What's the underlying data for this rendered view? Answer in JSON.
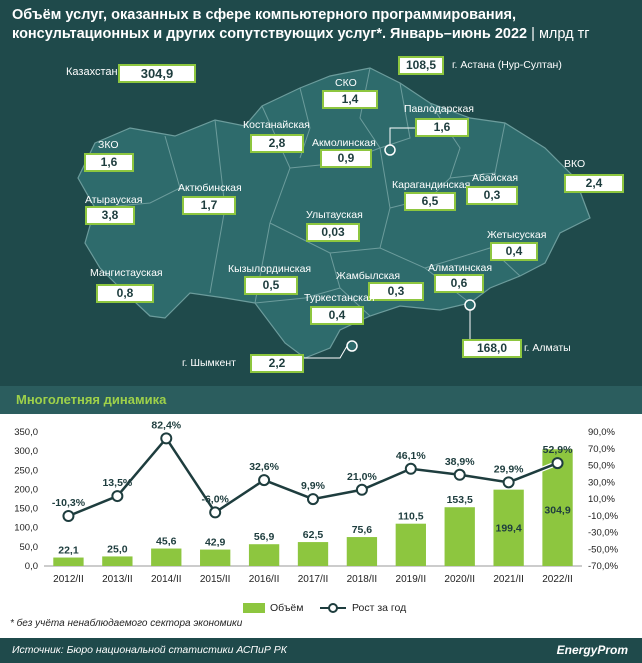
{
  "header": {
    "title": "Объём услуг, оказанных в сфере компьютерного программирования, консультационных и других сопутствующих услуг*. Январь–июнь 2022",
    "unit": "| млрд тг"
  },
  "map": {
    "total_label": "Казахстан",
    "total_value": "304,9",
    "regions": [
      {
        "name": "СКО",
        "value": "1,4"
      },
      {
        "name": "Павлодарская",
        "value": "1,6"
      },
      {
        "name": "Костанайская",
        "value": "2,8"
      },
      {
        "name": "Акмолинская",
        "value": "0,9"
      },
      {
        "name": "ЗКО",
        "value": "1,6"
      },
      {
        "name": "Актюбинская",
        "value": "1,7"
      },
      {
        "name": "Атырауская",
        "value": "3,8"
      },
      {
        "name": "Карагандинская",
        "value": "6,5"
      },
      {
        "name": "Абайская",
        "value": "0,3"
      },
      {
        "name": "ВКО",
        "value": "2,4"
      },
      {
        "name": "Улытауская",
        "value": "0,03"
      },
      {
        "name": "Жетысуская",
        "value": "0,4"
      },
      {
        "name": "Мангистауская",
        "value": "0,8"
      },
      {
        "name": "Кызылординская",
        "value": "0,5"
      },
      {
        "name": "Жамбылская",
        "value": "0,3"
      },
      {
        "name": "Алматинская",
        "value": "0,6"
      },
      {
        "name": "Туркестанская",
        "value": "0,4"
      }
    ],
    "cities": [
      {
        "name": "г. Астана (Нур-Султан)",
        "value": "108,5"
      },
      {
        "name": "г. Алматы",
        "value": "168,0"
      },
      {
        "name": "г. Шымкент",
        "value": "2,2"
      }
    ]
  },
  "section_title": "Многолетняя динамика",
  "chart_data": {
    "type": "bar",
    "categories": [
      "2012/II",
      "2013/II",
      "2014/II",
      "2015/II",
      "2016/II",
      "2017/II",
      "2018/II",
      "2019/II",
      "2020/II",
      "2021/II",
      "2022/II"
    ],
    "series": [
      {
        "name": "Объём",
        "values": [
          22.1,
          25.0,
          45.6,
          42.9,
          56.9,
          62.5,
          75.6,
          110.5,
          153.5,
          199.4,
          304.9
        ]
      },
      {
        "name": "Рост за год",
        "values": [
          -10.3,
          13.5,
          82.4,
          -6.0,
          32.6,
          9.9,
          21.0,
          46.1,
          38.9,
          29.9,
          52.9
        ]
      }
    ],
    "bar_labels": [
      "22,1",
      "25,0",
      "45,6",
      "42,9",
      "56,9",
      "62,5",
      "75,6",
      "110,5",
      "153,5",
      "199,4",
      "304,9"
    ],
    "line_labels": [
      "-10,3%",
      "13,5%",
      "82,4%",
      "-6,0%",
      "32,6%",
      "9,9%",
      "21,0%",
      "46,1%",
      "38,9%",
      "29,9%",
      "52,9%"
    ],
    "y_left": {
      "min": 0,
      "max": 350,
      "ticks": [
        "0,0",
        "50,0",
        "100,0",
        "150,0",
        "200,0",
        "250,0",
        "300,0",
        "350,0"
      ]
    },
    "y_right": {
      "min": -70,
      "max": 90,
      "ticks": [
        "90,0%",
        "70,0%",
        "50,0%",
        "30,0%",
        "10,0%",
        "-10,0%",
        "-30,0%",
        "-50,0%",
        "-70,0%"
      ]
    },
    "legend": [
      "Объём",
      "Рост за год"
    ],
    "colors": {
      "bar": "#8dc63f",
      "line": "#ffffff",
      "line_dark": "#1e3d3e"
    }
  },
  "footnote": "* без учёта ненаблюдаемого сектора экономики",
  "source": "Источник: Бюро национальной статистики АСПиР РК",
  "logo": "EnergyProm"
}
